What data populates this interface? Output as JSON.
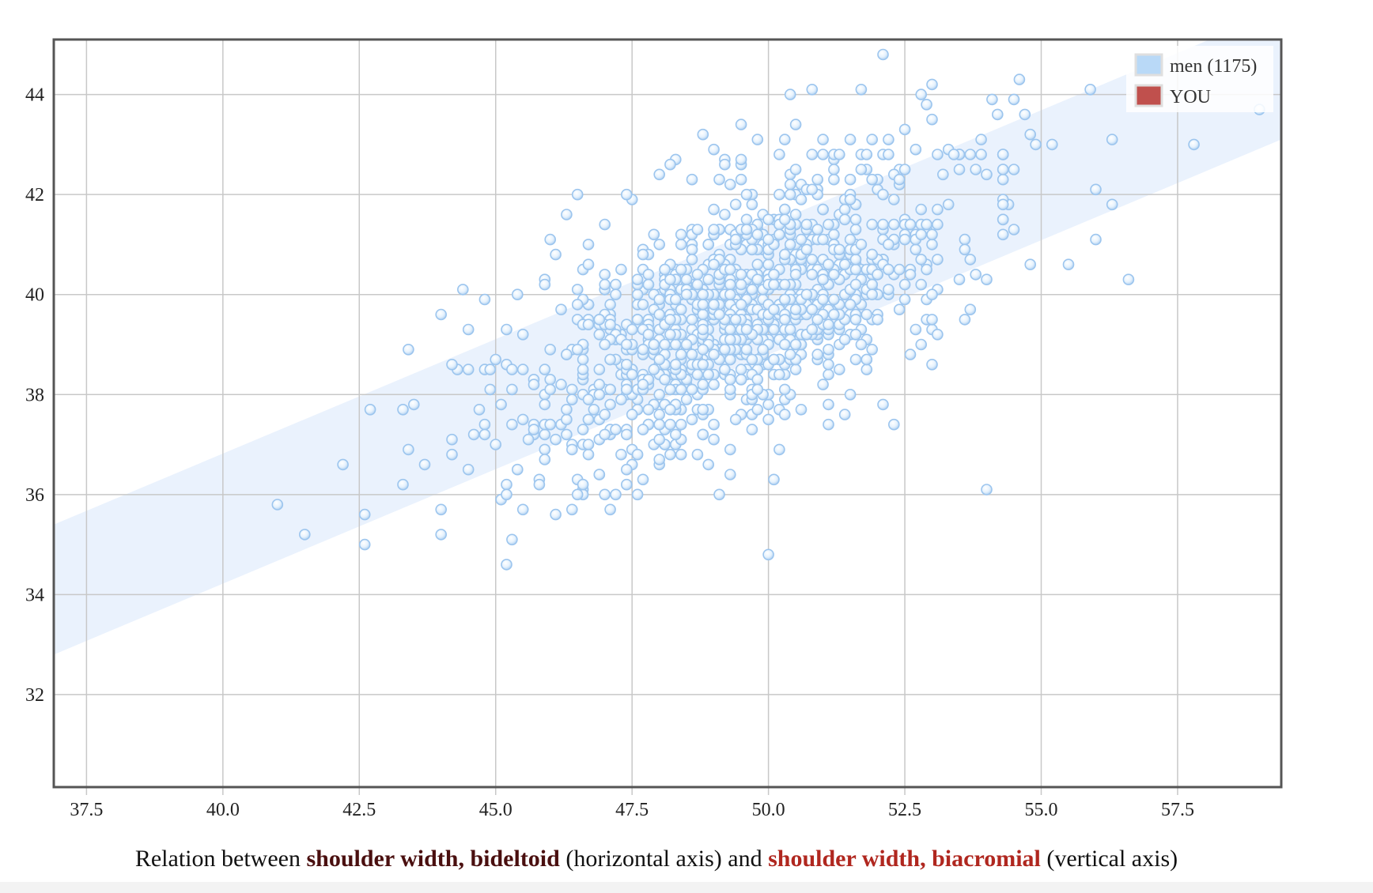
{
  "chart_data": {
    "type": "scatter",
    "xlabel": "shoulder width, bideltoid",
    "ylabel": "shoulder width, biacromial",
    "xlim": [
      36.9,
      59.4
    ],
    "ylim": [
      30.15,
      45.1
    ],
    "x_ticks": [
      "37.5",
      "40.0",
      "42.5",
      "45.0",
      "47.5",
      "50.0",
      "52.5",
      "55.0",
      "57.5"
    ],
    "y_ticks": [
      "32",
      "34",
      "36",
      "38",
      "40",
      "42",
      "44"
    ],
    "grid": true,
    "legend_position": "top-right",
    "series": [
      {
        "name": "men (1175)",
        "color": "#b9d9f7",
        "trend_band": {
          "lower": [
            [
              36.9,
              32.8
            ],
            [
              59.4,
              43.1
            ]
          ],
          "upper": [
            [
              36.9,
              35.4
            ],
            [
              59.4,
              45.7
            ]
          ]
        },
        "outliers": [
          [
            41.0,
            35.8
          ],
          [
            41.5,
            35.2
          ],
          [
            42.2,
            36.6
          ],
          [
            42.6,
            35.6
          ],
          [
            42.6,
            35.0
          ],
          [
            42.7,
            37.7
          ],
          [
            43.3,
            36.2
          ],
          [
            43.3,
            37.7
          ],
          [
            43.4,
            38.9
          ],
          [
            43.4,
            36.9
          ],
          [
            43.5,
            37.8
          ],
          [
            43.7,
            36.6
          ],
          [
            44.0,
            39.6
          ],
          [
            44.0,
            35.7
          ],
          [
            44.0,
            35.2
          ],
          [
            44.4,
            40.1
          ],
          [
            44.3,
            38.5
          ],
          [
            44.5,
            38.5
          ],
          [
            45.0,
            38.7
          ],
          [
            45.2,
            34.6
          ],
          [
            45.3,
            35.1
          ],
          [
            45.4,
            40.0
          ],
          [
            45.2,
            39.3
          ],
          [
            46.0,
            41.1
          ],
          [
            46.1,
            40.8
          ],
          [
            46.3,
            41.6
          ],
          [
            46.5,
            42.0
          ],
          [
            46.6,
            36.1
          ],
          [
            46.1,
            35.6
          ],
          [
            46.4,
            35.7
          ],
          [
            47.5,
            41.9
          ],
          [
            48.0,
            42.4
          ],
          [
            48.3,
            42.7
          ],
          [
            48.8,
            43.2
          ],
          [
            49.0,
            42.9
          ],
          [
            49.5,
            43.4
          ],
          [
            49.8,
            43.1
          ],
          [
            50.3,
            43.1
          ],
          [
            50.4,
            44.0
          ],
          [
            50.5,
            43.4
          ],
          [
            50.8,
            44.1
          ],
          [
            51.0,
            43.1
          ],
          [
            51.7,
            44.1
          ],
          [
            51.5,
            43.1
          ],
          [
            51.9,
            43.1
          ],
          [
            52.2,
            43.1
          ],
          [
            52.4,
            42.5
          ],
          [
            52.5,
            43.3
          ],
          [
            52.7,
            42.9
          ],
          [
            52.8,
            44.0
          ],
          [
            52.9,
            43.8
          ],
          [
            53.0,
            44.2
          ],
          [
            53.0,
            43.5
          ],
          [
            52.1,
            44.8
          ],
          [
            53.3,
            42.9
          ],
          [
            53.5,
            42.5
          ],
          [
            53.7,
            42.8
          ],
          [
            53.9,
            43.1
          ],
          [
            54.0,
            42.4
          ],
          [
            54.1,
            43.9
          ],
          [
            54.2,
            43.6
          ],
          [
            54.3,
            42.5
          ],
          [
            54.5,
            43.9
          ],
          [
            54.6,
            44.3
          ],
          [
            54.7,
            43.6
          ],
          [
            54.8,
            43.2
          ],
          [
            54.9,
            43.0
          ],
          [
            55.2,
            43.0
          ],
          [
            54.5,
            42.5
          ],
          [
            54.5,
            41.3
          ],
          [
            54.4,
            41.8
          ],
          [
            54.8,
            40.6
          ],
          [
            55.5,
            40.6
          ],
          [
            56.0,
            41.1
          ],
          [
            56.0,
            42.1
          ],
          [
            55.9,
            44.1
          ],
          [
            56.3,
            43.1
          ],
          [
            56.3,
            41.8
          ],
          [
            56.6,
            40.3
          ],
          [
            57.8,
            43.0
          ],
          [
            59.0,
            43.7
          ],
          [
            54.0,
            36.1
          ],
          [
            53.0,
            39.3
          ],
          [
            52.8,
            39.0
          ],
          [
            52.3,
            37.4
          ],
          [
            52.1,
            37.8
          ],
          [
            51.6,
            38.7
          ],
          [
            51.5,
            38.0
          ],
          [
            51.4,
            37.6
          ],
          [
            51.1,
            37.8
          ],
          [
            50.1,
            36.3
          ],
          [
            50.0,
            34.8
          ],
          [
            50.0,
            37.8
          ],
          [
            49.7,
            37.3
          ],
          [
            49.3,
            36.4
          ],
          [
            48.9,
            36.6
          ],
          [
            48.7,
            36.8
          ],
          [
            48.4,
            36.8
          ],
          [
            47.7,
            36.3
          ],
          [
            47.4,
            36.2
          ],
          [
            47.1,
            35.7
          ],
          [
            46.9,
            36.4
          ],
          [
            47.0,
            36.0
          ],
          [
            45.5,
            35.7
          ],
          [
            45.1,
            35.9
          ],
          [
            45.4,
            36.5
          ],
          [
            45.9,
            37.2
          ],
          [
            45.8,
            36.3
          ]
        ],
        "cluster": {
          "count": 1067,
          "center": [
            49.5,
            39.7
          ],
          "spread": [
            1.95,
            1.45
          ],
          "correlation": 0.6
        }
      },
      {
        "name": "YOU",
        "color": "#c0504d"
      }
    ]
  },
  "caption": {
    "prefix": "Relation between",
    "x_variable": "shoulder width, bideltoid",
    "x_suffix": "(horizontal axis) and",
    "y_variable": "shoulder width, biacromial",
    "y_suffix": "(vertical axis)"
  },
  "legend": {
    "men": {
      "label": "men (1175)",
      "color": "#b9d9f7"
    },
    "you": {
      "label": "YOU",
      "color": "#c0504d"
    }
  }
}
